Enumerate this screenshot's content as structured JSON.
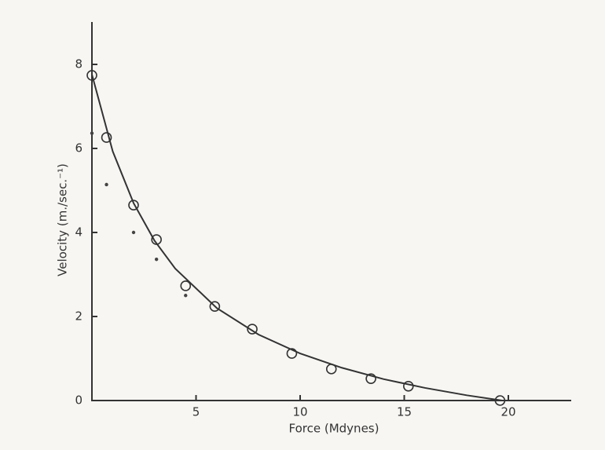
{
  "chart_data": {
    "type": "scatter",
    "x_label": "Force (Mdynes)",
    "y_label": "Velocity (m./sec.⁻¹)",
    "xlim": [
      0,
      23
    ],
    "ylim": [
      0,
      9
    ],
    "xticks": [
      5,
      10,
      15,
      20
    ],
    "yticks": [
      0,
      2,
      4,
      6,
      8
    ],
    "grid": false,
    "series": [
      {
        "color": "#333333",
        "marker": "open-circle",
        "x": [
          0,
          0.7,
          2.0,
          3.1,
          4.5,
          5.9,
          7.7,
          9.6,
          11.5,
          13.4,
          15.2,
          19.6
        ],
        "values": [
          7.74,
          6.26,
          4.65,
          3.83,
          2.73,
          2.24,
          1.7,
          1.12,
          0.75,
          0.52,
          0.34,
          0
        ]
      },
      {
        "color": "#444444",
        "marker": "dot",
        "x": [
          0,
          0.7,
          2.0,
          3.1,
          4.5
        ],
        "values": [
          6.36,
          5.14,
          4.0,
          3.36,
          2.5
        ]
      },
      {
        "color": "#333333",
        "marker": "line",
        "x": [
          0,
          1,
          2,
          3,
          4,
          6,
          8,
          10,
          12,
          14,
          16,
          18,
          19.7
        ],
        "values": [
          7.76,
          5.93,
          4.7,
          3.81,
          3.14,
          2.2,
          1.57,
          1.12,
          0.78,
          0.51,
          0.3,
          0.125,
          0
        ]
      }
    ]
  }
}
